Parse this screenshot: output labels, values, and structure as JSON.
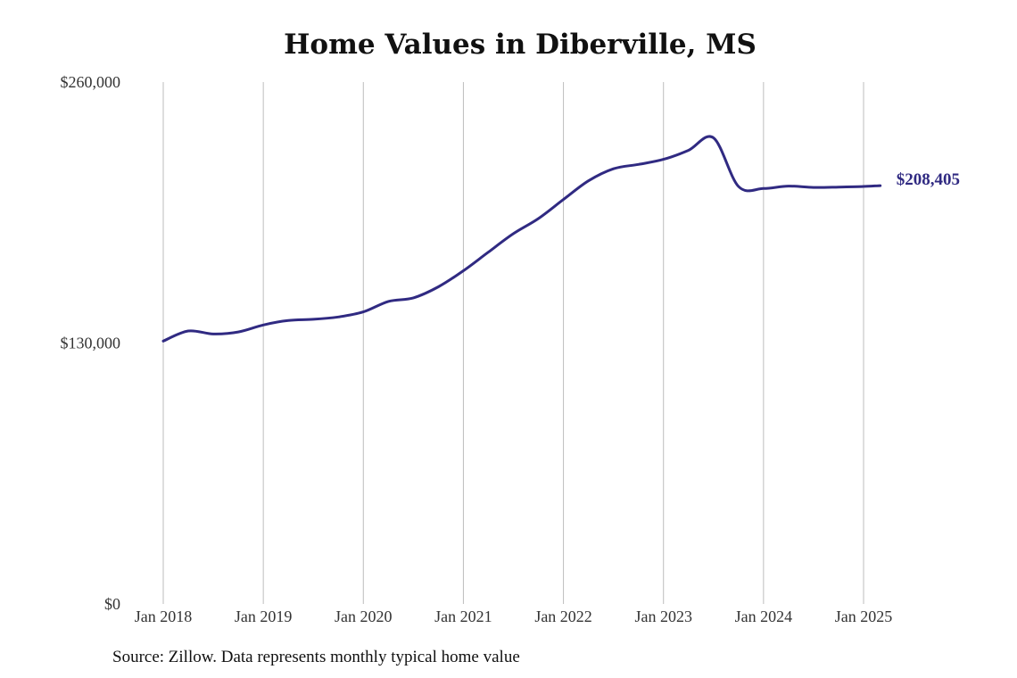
{
  "chart_data": {
    "type": "line",
    "title": "Home Values in Diberville, MS",
    "source": "Source: Zillow. Data represents monthly typical home value",
    "ylim": [
      0,
      260000
    ],
    "y_ticks": [
      {
        "value": 260000,
        "label": "$260,000"
      },
      {
        "value": 130000,
        "label": "$130,000"
      },
      {
        "value": 0,
        "label": "$0"
      }
    ],
    "x_ticks": [
      {
        "date": "2018-01",
        "label": "Jan 2018"
      },
      {
        "date": "2019-01",
        "label": "Jan 2019"
      },
      {
        "date": "2020-01",
        "label": "Jan 2020"
      },
      {
        "date": "2021-01",
        "label": "Jan 2021"
      },
      {
        "date": "2022-01",
        "label": "Jan 2022"
      },
      {
        "date": "2023-01",
        "label": "Jan 2023"
      },
      {
        "date": "2024-01",
        "label": "Jan 2024"
      },
      {
        "date": "2025-01",
        "label": "Jan 2025"
      }
    ],
    "grid": "vertical",
    "line_color": "#302a82",
    "end_label": "$208,405",
    "series": [
      {
        "x": [
          "2018-01",
          "2018-04",
          "2018-07",
          "2018-10",
          "2019-01",
          "2019-04",
          "2019-07",
          "2019-10",
          "2020-01",
          "2020-04",
          "2020-07",
          "2020-10",
          "2021-01",
          "2021-04",
          "2021-07",
          "2021-10",
          "2022-01",
          "2022-04",
          "2022-07",
          "2022-10",
          "2023-01",
          "2023-04",
          "2023-07",
          "2023-10",
          "2024-01",
          "2024-04",
          "2024-07",
          "2024-10",
          "2025-01",
          "2025-03"
        ],
        "values": [
          131000,
          136000,
          134500,
          135500,
          139000,
          141200,
          141800,
          143000,
          145500,
          150700,
          152500,
          158000,
          166000,
          175300,
          184500,
          192000,
          201500,
          210800,
          216800,
          219000,
          221500,
          226000,
          232200,
          208000,
          207000,
          208200,
          207500,
          207700,
          208000,
          208405
        ]
      }
    ]
  }
}
